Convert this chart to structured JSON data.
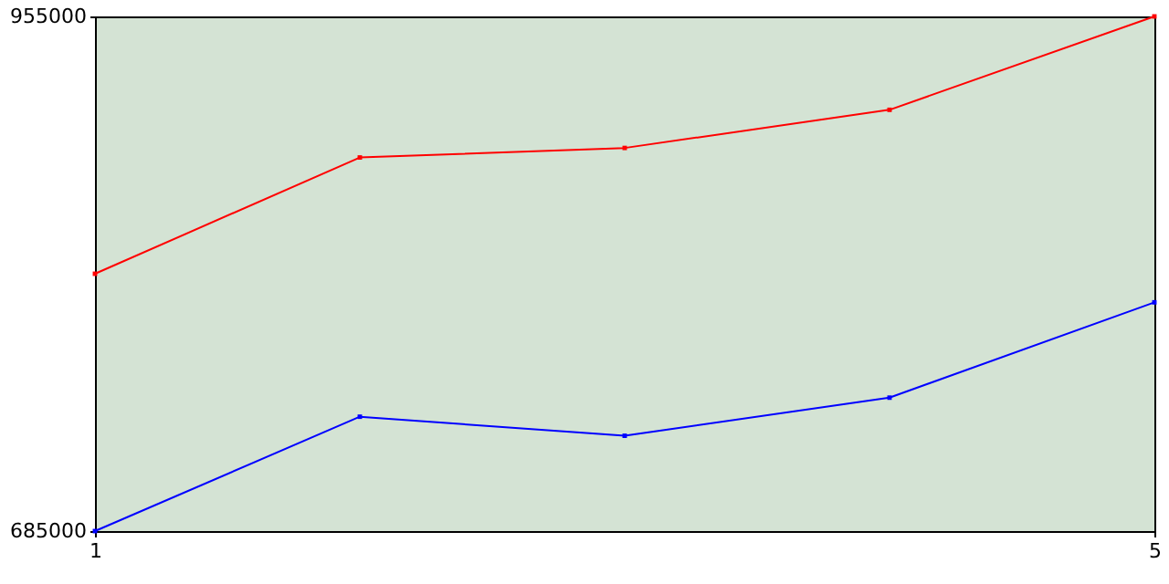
{
  "chart_data": {
    "type": "line",
    "x": [
      1,
      2,
      3,
      4,
      5
    ],
    "series": [
      {
        "color": "#ff0000",
        "values": [
          820000,
          881000,
          886000,
          906000,
          955000
        ]
      },
      {
        "color": "#0000ff",
        "values": [
          685000,
          745000,
          735000,
          755000,
          805000
        ]
      }
    ],
    "xlim": [
      1,
      5
    ],
    "xticks": [
      1,
      5
    ],
    "ylim": [
      685000,
      955000
    ],
    "yticks": [
      685000,
      955000
    ],
    "grid": false,
    "marker": "square",
    "line_style": "solid"
  }
}
